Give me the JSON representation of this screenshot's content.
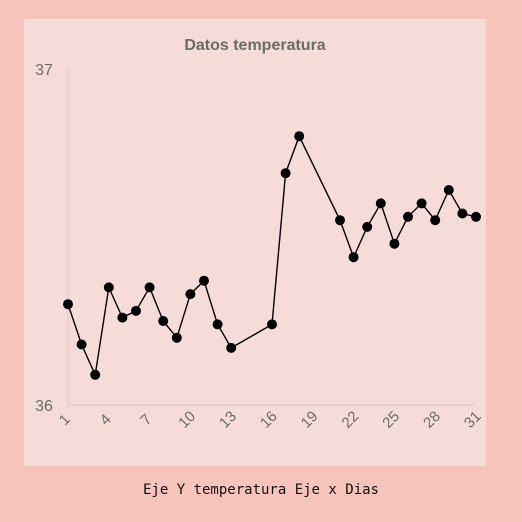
{
  "chart_data": {
    "type": "line",
    "title": "Datos temperatura",
    "x": [
      1,
      2,
      3,
      4,
      5,
      6,
      7,
      8,
      9,
      10,
      11,
      12,
      13,
      16,
      17,
      18,
      21,
      22,
      23,
      24,
      25,
      26,
      27,
      28,
      29,
      30,
      31
    ],
    "values": [
      36.3,
      36.18,
      36.09,
      36.35,
      36.26,
      36.28,
      36.35,
      36.25,
      36.2,
      36.33,
      36.37,
      36.24,
      36.17,
      36.24,
      36.69,
      36.8,
      36.55,
      36.44,
      36.53,
      36.6,
      36.48,
      36.56,
      36.6,
      36.55,
      36.64,
      36.57,
      36.56
    ],
    "x_ticks": [
      "1",
      "4",
      "7",
      "10",
      "13",
      "16",
      "19",
      "22",
      "25",
      "28",
      "31"
    ],
    "y_ticks": [
      "36",
      "37"
    ],
    "xlim": [
      1,
      31
    ],
    "ylim": [
      36,
      37
    ],
    "grid": false,
    "legend": "none",
    "xlabel": "",
    "ylabel": "",
    "line_color": "#000000",
    "marker_color": "#000000"
  },
  "caption": "Eje Y temperatura Eje x Dias",
  "colors": {
    "page_background": "#f7c4bc",
    "chart_background": "#f6dcd8",
    "text": "#6b6b6b",
    "axis": "#d9c3bf"
  }
}
